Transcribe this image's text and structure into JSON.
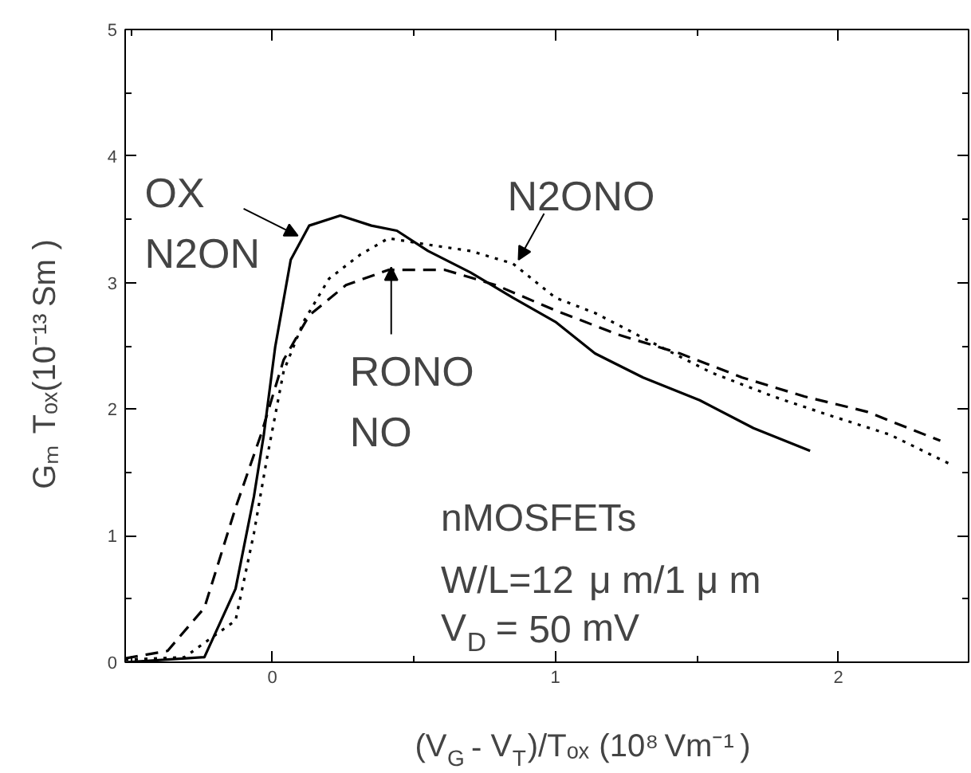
{
  "chart_data": {
    "type": "line",
    "xlabel": "(V$_{G}$ - V$_{T}$)/Tₒₓ (10⁸ Vm⁻¹ )",
    "ylabel": "Gₘ  Tₒₓ(10⁻¹³ Sm )",
    "xlim": [
      -0.52,
      2.46
    ],
    "ylim": [
      0,
      5
    ],
    "xticks": [
      0,
      1,
      2
    ],
    "yticks": [
      0,
      1,
      2,
      3,
      4,
      5
    ],
    "grid": false,
    "marker": "none",
    "series": [
      {
        "color": "#000000",
        "line_style": "solid",
        "x": [
          -0.52,
          -0.24,
          -0.13,
          -0.065,
          -0.03,
          0.01,
          0.065,
          0.13,
          0.24,
          0.35,
          0.44,
          0.55,
          0.7,
          0.85,
          1.0,
          1.14,
          1.31,
          1.51,
          1.7,
          1.9
        ],
        "values": [
          0,
          0.04,
          0.58,
          1.31,
          1.8,
          2.49,
          3.18,
          3.45,
          3.53,
          3.45,
          3.41,
          3.25,
          3.08,
          2.88,
          2.69,
          2.44,
          2.25,
          2.07,
          1.85,
          1.67
        ]
      },
      {
        "color": "#000000",
        "line_style": "dotted",
        "x": [
          -0.52,
          -0.31,
          -0.13,
          -0.065,
          -0.02,
          0.04,
          0.11,
          0.2,
          0.31,
          0.41,
          0.55,
          0.7,
          0.85,
          1.0,
          1.14,
          1.33,
          1.55,
          1.77,
          1.97,
          2.18,
          2.4
        ],
        "values": [
          0.02,
          0.04,
          0.33,
          1.02,
          1.6,
          2.3,
          2.69,
          3.03,
          3.22,
          3.35,
          3.3,
          3.25,
          3.15,
          2.88,
          2.76,
          2.54,
          2.29,
          2.1,
          1.95,
          1.8,
          1.56
        ]
      },
      {
        "color": "#000000",
        "line_style": "dashed",
        "x": [
          -0.52,
          -0.37,
          -0.24,
          -0.13,
          -0.04,
          0.04,
          0.13,
          0.26,
          0.41,
          0.61,
          0.79,
          1.0,
          1.22,
          1.44,
          1.66,
          1.88,
          2.1,
          2.36
        ],
        "values": [
          0.03,
          0.09,
          0.43,
          1.22,
          1.8,
          2.39,
          2.74,
          2.98,
          3.1,
          3.1,
          2.98,
          2.78,
          2.59,
          2.44,
          2.25,
          2.1,
          1.98,
          1.75
        ]
      }
    ],
    "annotations": [
      {
        "text": "OX\nN2ON",
        "x": 0.09,
        "y": 3.37
      },
      {
        "text": "RONO\nNO",
        "x": 0.42,
        "y": 3.12
      },
      {
        "text": "N2ONO",
        "x": 0.87,
        "y": 3.18
      },
      "nMOSFETs",
      "W/L=12 μ m/1 μ m",
      "V$_{D}$ = 50 mV"
    ]
  }
}
